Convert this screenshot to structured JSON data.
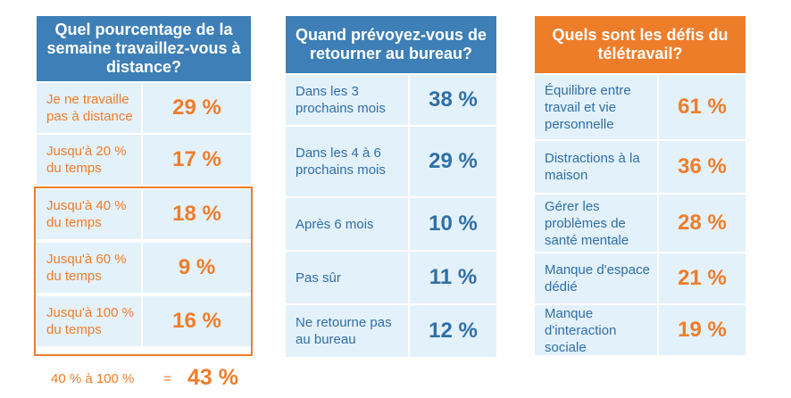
{
  "chart_data": [
    {
      "type": "table",
      "title": "Quel pourcentage de la semaine travaillez-vous à distance?",
      "categories": [
        "Je ne travaille pas à distance",
        "Jusqu'à 20 % du temps",
        "Jusqu'à 40 % du temps",
        "Jusqu'à 60 % du temps",
        "Jusqu'à 100 % du temps"
      ],
      "values": [
        29,
        17,
        18,
        9,
        16
      ],
      "value_labels": [
        "29 %",
        "17 %",
        "18 %",
        "9 %",
        "16 %"
      ],
      "summary": {
        "label": "40 % à 100 %",
        "equals": "=",
        "value": 43,
        "value_label": "43 %"
      },
      "header_color": "#3d7fb6",
      "value_color": "#ee7d2a"
    },
    {
      "type": "table",
      "title": "Quand prévoyez-vous de retourner au bureau?",
      "categories": [
        "Dans les 3 prochains mois",
        "Dans les 4 à 6 prochains mois",
        "Après 6 mois",
        "Pas sûr",
        "Ne retourne pas au bureau"
      ],
      "values": [
        38,
        29,
        10,
        11,
        12
      ],
      "value_labels": [
        "38 %",
        "29 %",
        "10 %",
        "11 %",
        "12 %"
      ],
      "header_color": "#3d7fb6",
      "value_color": "#2f6fa6"
    },
    {
      "type": "table",
      "title": "Quels sont les défis du télétravail?",
      "categories": [
        "Équilibre entre travail et vie personnelle",
        "Distractions à la maison",
        "Gérer les problèmes de santé mentale",
        "Manque d'espace dédié",
        "Manque d'interaction sociale"
      ],
      "values": [
        61,
        36,
        28,
        21,
        19
      ],
      "value_labels": [
        "61 %",
        "36 %",
        "28 %",
        "21 %",
        "19 %"
      ],
      "header_color": "#ee7d2a",
      "value_color": "#ee7d2a"
    }
  ],
  "colors": {
    "row_bg": "#e3f1fb",
    "blue": "#3d7fb6",
    "orange": "#ee7d2a"
  }
}
